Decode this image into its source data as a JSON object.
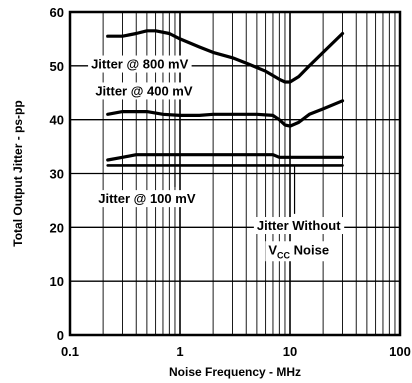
{
  "chart_data": {
    "type": "line",
    "xlabel": "Noise Frequency - MHz",
    "ylabel": "Total Output Jitter - ps-pp",
    "xscale": "log",
    "xlim": [
      0.1,
      100
    ],
    "ylim": [
      0,
      60
    ],
    "grid": true,
    "x_ticks": [
      "0.1",
      "1",
      "10",
      "100"
    ],
    "y_ticks": [
      "0",
      "10",
      "20",
      "30",
      "40",
      "50",
      "60"
    ],
    "series": [
      {
        "name": "Jitter @ 800 mV",
        "x": [
          0.22,
          0.3,
          0.4,
          0.5,
          0.6,
          0.8,
          1.0,
          1.5,
          2.0,
          3.0,
          4.0,
          6.0,
          8.0,
          9.0,
          10.0,
          12.0,
          15.0,
          20.0,
          30.0
        ],
        "y": [
          55.5,
          55.5,
          56.0,
          56.5,
          56.5,
          56.0,
          55.0,
          53.5,
          52.5,
          51.5,
          50.5,
          49.0,
          47.5,
          47.0,
          47.0,
          48.0,
          50.0,
          52.5,
          56.0
        ]
      },
      {
        "name": "Jitter @ 400 mV",
        "x": [
          0.22,
          0.3,
          0.4,
          0.5,
          0.7,
          1.0,
          1.5,
          2.0,
          3.0,
          5.0,
          7.0,
          8.0,
          9.0,
          10.0,
          12.0,
          15.0,
          20.0,
          30.0
        ],
        "y": [
          41.0,
          41.5,
          41.5,
          41.5,
          41.0,
          40.8,
          40.8,
          41.0,
          41.0,
          41.0,
          40.8,
          40.0,
          39.0,
          38.8,
          39.5,
          41.0,
          42.0,
          43.5
        ]
      },
      {
        "name": "Jitter @ 100 mV",
        "x": [
          0.22,
          0.3,
          0.4,
          0.5,
          1.0,
          2.0,
          5.0,
          7.0,
          8.0,
          10.0,
          15.0,
          20.0,
          30.0
        ],
        "y": [
          32.5,
          33.0,
          33.5,
          33.5,
          33.5,
          33.5,
          33.5,
          33.5,
          33.0,
          33.0,
          33.0,
          33.0,
          33.0
        ]
      },
      {
        "name": "Jitter Without VCC Noise",
        "x": [
          0.22,
          0.5,
          1.0,
          5.0,
          10.0,
          30.0
        ],
        "y": [
          31.5,
          31.5,
          31.5,
          31.5,
          31.5,
          31.5
        ]
      }
    ],
    "annotations": [
      {
        "text": "Jitter @ 800 mV",
        "x": 0.43,
        "y": 49.5
      },
      {
        "text": "Jitter @ 400 mV",
        "x": 0.47,
        "y": 44.5
      },
      {
        "text": "Jitter @ 100 mV",
        "x": 0.5,
        "y": 24.5
      },
      {
        "text": "Jitter Without",
        "x": 12,
        "y": 19.5
      },
      {
        "text_main": "V",
        "text_sub": "CC",
        "text_tail": " Noise",
        "x": 12,
        "y": 15.0
      }
    ]
  }
}
